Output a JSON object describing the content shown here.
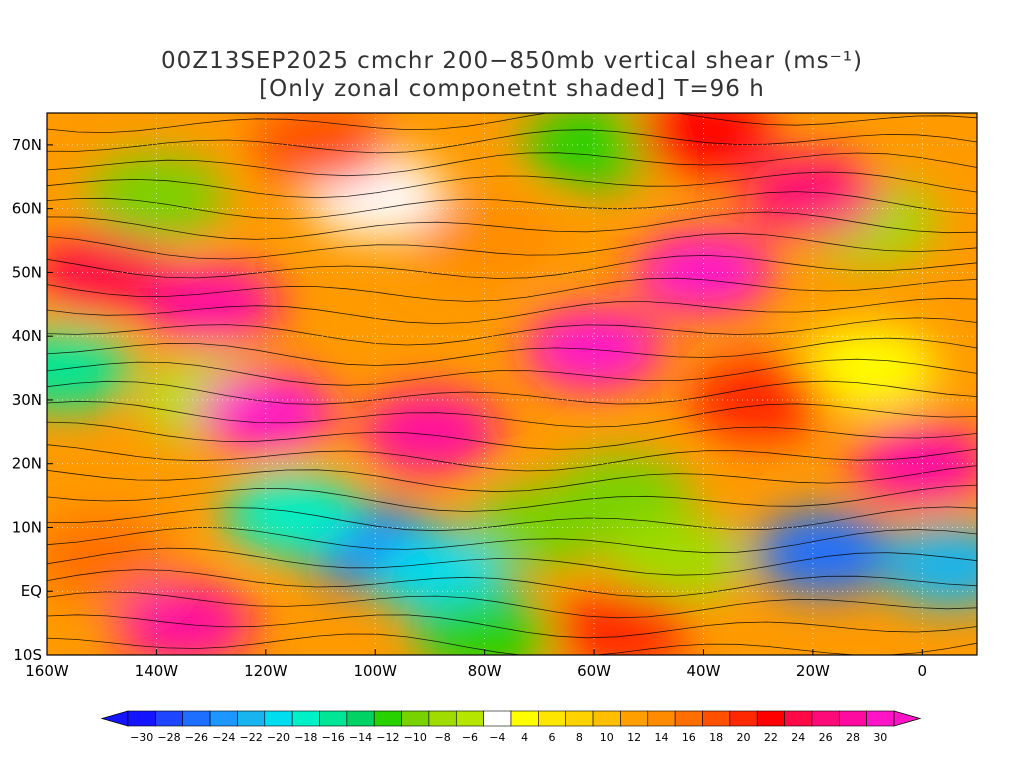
{
  "title": {
    "line1": "00Z13SEP2025 cmchr 200−850mb vertical shear (ms⁻¹)",
    "line2": "[Only zonal componetnt shaded] T=96 h"
  },
  "map": {
    "lon_range": [
      -160,
      10
    ],
    "lat_range": [
      -10,
      75
    ],
    "lat_labels": [
      {
        "lat": 70,
        "text": "70N"
      },
      {
        "lat": 60,
        "text": "60N"
      },
      {
        "lat": 50,
        "text": "50N"
      },
      {
        "lat": 40,
        "text": "40N"
      },
      {
        "lat": 30,
        "text": "30N"
      },
      {
        "lat": 20,
        "text": "20N"
      },
      {
        "lat": 10,
        "text": "10N"
      },
      {
        "lat": 0,
        "text": "EQ"
      },
      {
        "lat": -10,
        "text": "10S"
      }
    ],
    "lon_labels": [
      {
        "lon": -160,
        "text": "160W"
      },
      {
        "lon": -140,
        "text": "140W"
      },
      {
        "lon": -120,
        "text": "120W"
      },
      {
        "lon": -100,
        "text": "100W"
      },
      {
        "lon": -80,
        "text": "80W"
      },
      {
        "lon": -60,
        "text": "60W"
      },
      {
        "lon": -40,
        "text": "40W"
      },
      {
        "lon": -20,
        "text": "20W"
      },
      {
        "lon": 0,
        "text": "0"
      }
    ],
    "shear_regions": [
      {
        "lon": -100,
        "lat": 7,
        "value": -26
      },
      {
        "lon": -115,
        "lat": 12,
        "value": -18
      },
      {
        "lon": -88,
        "lat": 3,
        "value": -20
      },
      {
        "lon": -70,
        "lat": 10,
        "value": -10
      },
      {
        "lon": -55,
        "lat": 15,
        "value": -10
      },
      {
        "lon": -45,
        "lat": 5,
        "value": -8
      },
      {
        "lon": -80,
        "lat": -7,
        "value": -12
      },
      {
        "lon": -18,
        "lat": 6,
        "value": -26
      },
      {
        "lon": 5,
        "lat": 4,
        "value": -22
      },
      {
        "lon": -157,
        "lat": 35,
        "value": -16
      },
      {
        "lon": -130,
        "lat": 30,
        "value": -6
      },
      {
        "lon": -100,
        "lat": 62,
        "value": -4
      },
      {
        "lon": -140,
        "lat": 62,
        "value": -10
      },
      {
        "lon": -60,
        "lat": 70,
        "value": -12
      },
      {
        "lon": -10,
        "lat": 58,
        "value": -8
      },
      {
        "lon": -10,
        "lat": 35,
        "value": 4
      },
      {
        "lon": -120,
        "lat": 28,
        "value": 30
      },
      {
        "lon": -90,
        "lat": 25,
        "value": 28
      },
      {
        "lon": -60,
        "lat": 38,
        "value": 30
      },
      {
        "lon": -40,
        "lat": 50,
        "value": 30
      },
      {
        "lon": -20,
        "lat": 62,
        "value": 26
      },
      {
        "lon": -130,
        "lat": 45,
        "value": 28
      },
      {
        "lon": -150,
        "lat": 50,
        "value": 24
      },
      {
        "lon": -135,
        "lat": -5,
        "value": 28
      },
      {
        "lon": -150,
        "lat": 5,
        "value": 16
      },
      {
        "lon": -55,
        "lat": -6,
        "value": 20
      },
      {
        "lon": 0,
        "lat": 20,
        "value": 28
      },
      {
        "lon": -30,
        "lat": 30,
        "value": 20
      },
      {
        "lon": -80,
        "lat": 55,
        "value": 14
      },
      {
        "lon": -110,
        "lat": 70,
        "value": 18
      },
      {
        "lon": -40,
        "lat": 72,
        "value": 22
      }
    ]
  },
  "colorbar": {
    "colors": [
      "#1414ff",
      "#1e46ff",
      "#1e6eff",
      "#1e96ff",
      "#18b4f0",
      "#00dcf0",
      "#00f0c8",
      "#00e696",
      "#00d264",
      "#28d200",
      "#78d200",
      "#a0dc00",
      "#b4e600",
      "#ffffff",
      "#ffff00",
      "#ffe600",
      "#ffd200",
      "#ffbe00",
      "#ffa000",
      "#ff8c00",
      "#ff6e00",
      "#ff5000",
      "#ff2800",
      "#ff0000",
      "#ff0a46",
      "#ff0a78",
      "#ff0aa0",
      "#ff14c8"
    ],
    "labels": [
      "−30",
      "−28",
      "−26",
      "−24",
      "−22",
      "−20",
      "−18",
      "−16",
      "−14",
      "−12",
      "−10",
      "−8",
      "−6",
      "−4",
      "4",
      "6",
      "8",
      "10",
      "12",
      "14",
      "16",
      "18",
      "20",
      "22",
      "24",
      "26",
      "28",
      "30"
    ]
  }
}
